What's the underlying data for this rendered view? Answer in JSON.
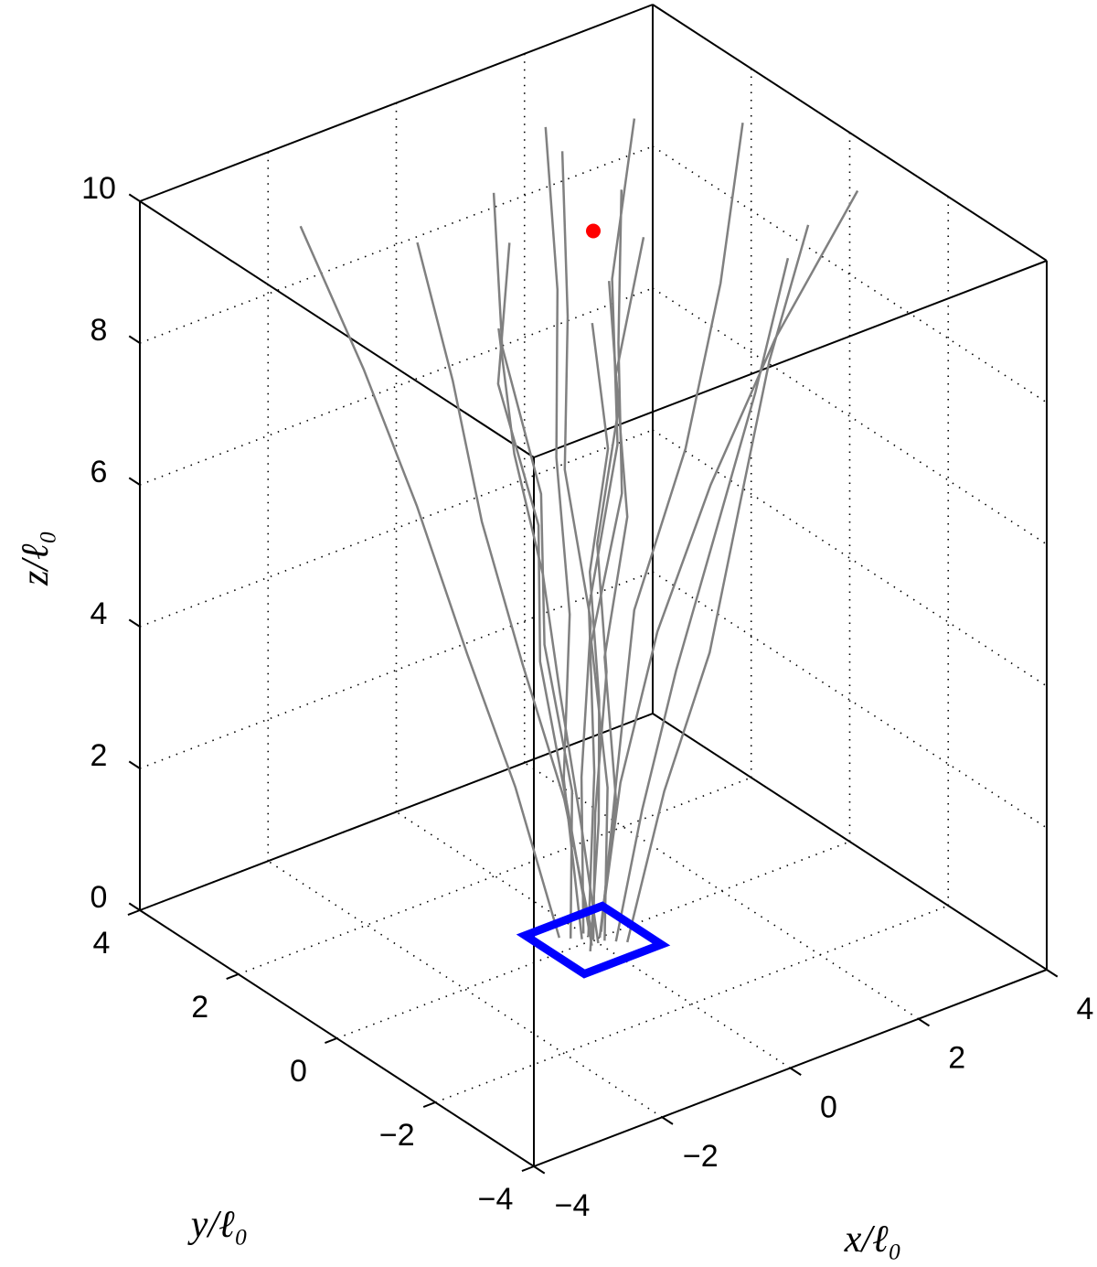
{
  "chart_data": {
    "type": "line3d",
    "xlabel": "x/ℓ₀",
    "ylabel": "y/ℓ₀",
    "zlabel": "z/ℓ₀",
    "xlim": [
      -4,
      4
    ],
    "ylim": [
      -4,
      4
    ],
    "zlim": [
      0,
      10
    ],
    "xticks": [
      {
        "value": -4,
        "label": "−4"
      },
      {
        "value": -2,
        "label": "−2"
      },
      0,
      2,
      4
    ],
    "yticks": [
      {
        "value": -4,
        "label": "−4"
      },
      {
        "value": -2,
        "label": "−2"
      },
      0,
      2,
      4
    ],
    "zticks": [
      0,
      2,
      4,
      6,
      8,
      10
    ],
    "grid": true,
    "trajectory_color": "#808080",
    "trajectories": [
      {
        "x": [
          0,
          -0.3,
          -0.8,
          -1.2,
          -1.5,
          -1.9
        ],
        "y": [
          0,
          0.2,
          0.4,
          0.7,
          0.9,
          1.1
        ],
        "z": [
          0,
          2,
          4,
          6,
          8,
          10
        ]
      },
      {
        "x": [
          0.1,
          0.5,
          1.0,
          1.6,
          2.3,
          3.2
        ],
        "y": [
          0,
          0.1,
          0.0,
          -0.3,
          -0.7,
          -1.2
        ],
        "z": [
          0,
          2,
          4,
          6,
          8,
          10
        ]
      },
      {
        "x": [
          -0.1,
          0.0,
          0.4,
          0.5,
          0.9,
          1.1
        ],
        "y": [
          0.1,
          0.6,
          1.0,
          1.4,
          1.9,
          2.4
        ],
        "z": [
          0,
          2,
          4,
          6,
          8,
          10
        ]
      },
      {
        "x": [
          0,
          -0.5,
          -0.9,
          -1.4,
          -2.0,
          -2.4
        ],
        "y": [
          -0.1,
          -0.4,
          -0.5,
          -0.8,
          -1.0,
          -1.2
        ],
        "z": [
          0,
          2,
          4,
          6,
          8,
          10
        ]
      },
      {
        "x": [
          0.2,
          0.3,
          0.6,
          0.8,
          1.3,
          1.5
        ],
        "y": [
          -0.2,
          -0.6,
          -0.9,
          -1.4,
          -1.6,
          -2.0
        ],
        "z": [
          0,
          2,
          4,
          6,
          8,
          10
        ]
      },
      {
        "x": [
          -0.2,
          -0.1,
          -0.3,
          -0.2,
          -0.5,
          -0.4
        ],
        "y": [
          0.2,
          0.3,
          0.6,
          0.8,
          1.2,
          1.5
        ],
        "z": [
          0,
          2,
          4,
          6,
          8,
          10
        ]
      },
      {
        "x": [
          0,
          0.4,
          0.7,
          1.3,
          1.6,
          2.1
        ],
        "y": [
          0.1,
          0.5,
          1.0,
          1.2,
          1.7,
          1.9
        ],
        "z": [
          0,
          2,
          4,
          6,
          8,
          10
        ]
      },
      {
        "x": [
          0.1,
          0.2,
          0.1,
          0.3,
          0.2,
          0.4
        ],
        "y": [
          0,
          -0.2,
          -0.1,
          -0.3,
          -0.2,
          -0.5
        ],
        "z": [
          0,
          2,
          4,
          6,
          8,
          10
        ]
      },
      {
        "x": [
          -0.1,
          -0.4,
          -0.6,
          -0.7,
          -1.1,
          -1.0
        ],
        "y": [
          -0.1,
          0.0,
          0.3,
          0.2,
          0.5,
          0.4
        ],
        "z": [
          0,
          2,
          4,
          6,
          8,
          10
        ]
      },
      {
        "x": [
          0.2,
          0.6,
          1.1,
          1.9,
          2.6,
          3.1
        ],
        "y": [
          0.1,
          0.3,
          0.6,
          0.6,
          0.8,
          1.0
        ],
        "z": [
          0,
          2,
          4,
          6,
          8,
          10
        ]
      },
      {
        "x": [
          0,
          0.2,
          0.5,
          0.4,
          0.6,
          0.9
        ],
        "y": [
          0.2,
          0.5,
          0.7,
          1.1,
          1.3,
          1.8
        ],
        "z": [
          0,
          2,
          4,
          6,
          8,
          10
        ]
      },
      {
        "x": [
          -0.2,
          -0.3,
          -0.6,
          -0.9,
          -1.0,
          -1.4
        ],
        "y": [
          -0.2,
          -0.5,
          -0.9,
          -1.1,
          -1.6,
          -1.8
        ],
        "z": [
          0,
          2,
          4,
          6,
          8,
          10
        ]
      },
      {
        "x": [
          0.1,
          0.3,
          0.2,
          0.6,
          0.7,
          0.9
        ],
        "y": [
          -0.1,
          0.1,
          0.3,
          0.2,
          0.4,
          0.6
        ],
        "z": [
          0,
          2,
          4,
          6,
          8,
          10
        ]
      },
      {
        "x": [
          0,
          -0.2,
          -0.1,
          -0.4,
          -0.3,
          -0.6
        ],
        "y": [
          0,
          -0.3,
          -0.4,
          -0.6,
          -0.9,
          -1.1
        ],
        "z": [
          0,
          2,
          4,
          6,
          8,
          10
        ]
      },
      {
        "x": [
          0.3,
          0.8,
          1.2,
          1.5,
          1.9,
          2.2
        ],
        "y": [
          -0.3,
          -0.4,
          -0.8,
          -1.0,
          -1.1,
          -1.5
        ],
        "z": [
          0,
          2,
          4,
          6,
          8,
          10
        ]
      },
      {
        "x": [
          -0.3,
          -0.6,
          -1.2,
          -1.6,
          -2.2,
          -2.8
        ],
        "y": [
          0.3,
          0.8,
          1.0,
          1.5,
          1.8,
          2.3
        ],
        "z": [
          0,
          2,
          4,
          6,
          8,
          10
        ]
      }
    ],
    "target": {
      "x": 0,
      "y": 0,
      "z": 10,
      "color": "#ff0000"
    },
    "source": {
      "x": [
        -0.6,
        0.6,
        0.6,
        -0.6
      ],
      "y": [
        -0.6,
        -0.6,
        0.6,
        0.6
      ],
      "z": [
        0,
        0,
        0,
        0
      ],
      "color": "#0000ff"
    }
  }
}
